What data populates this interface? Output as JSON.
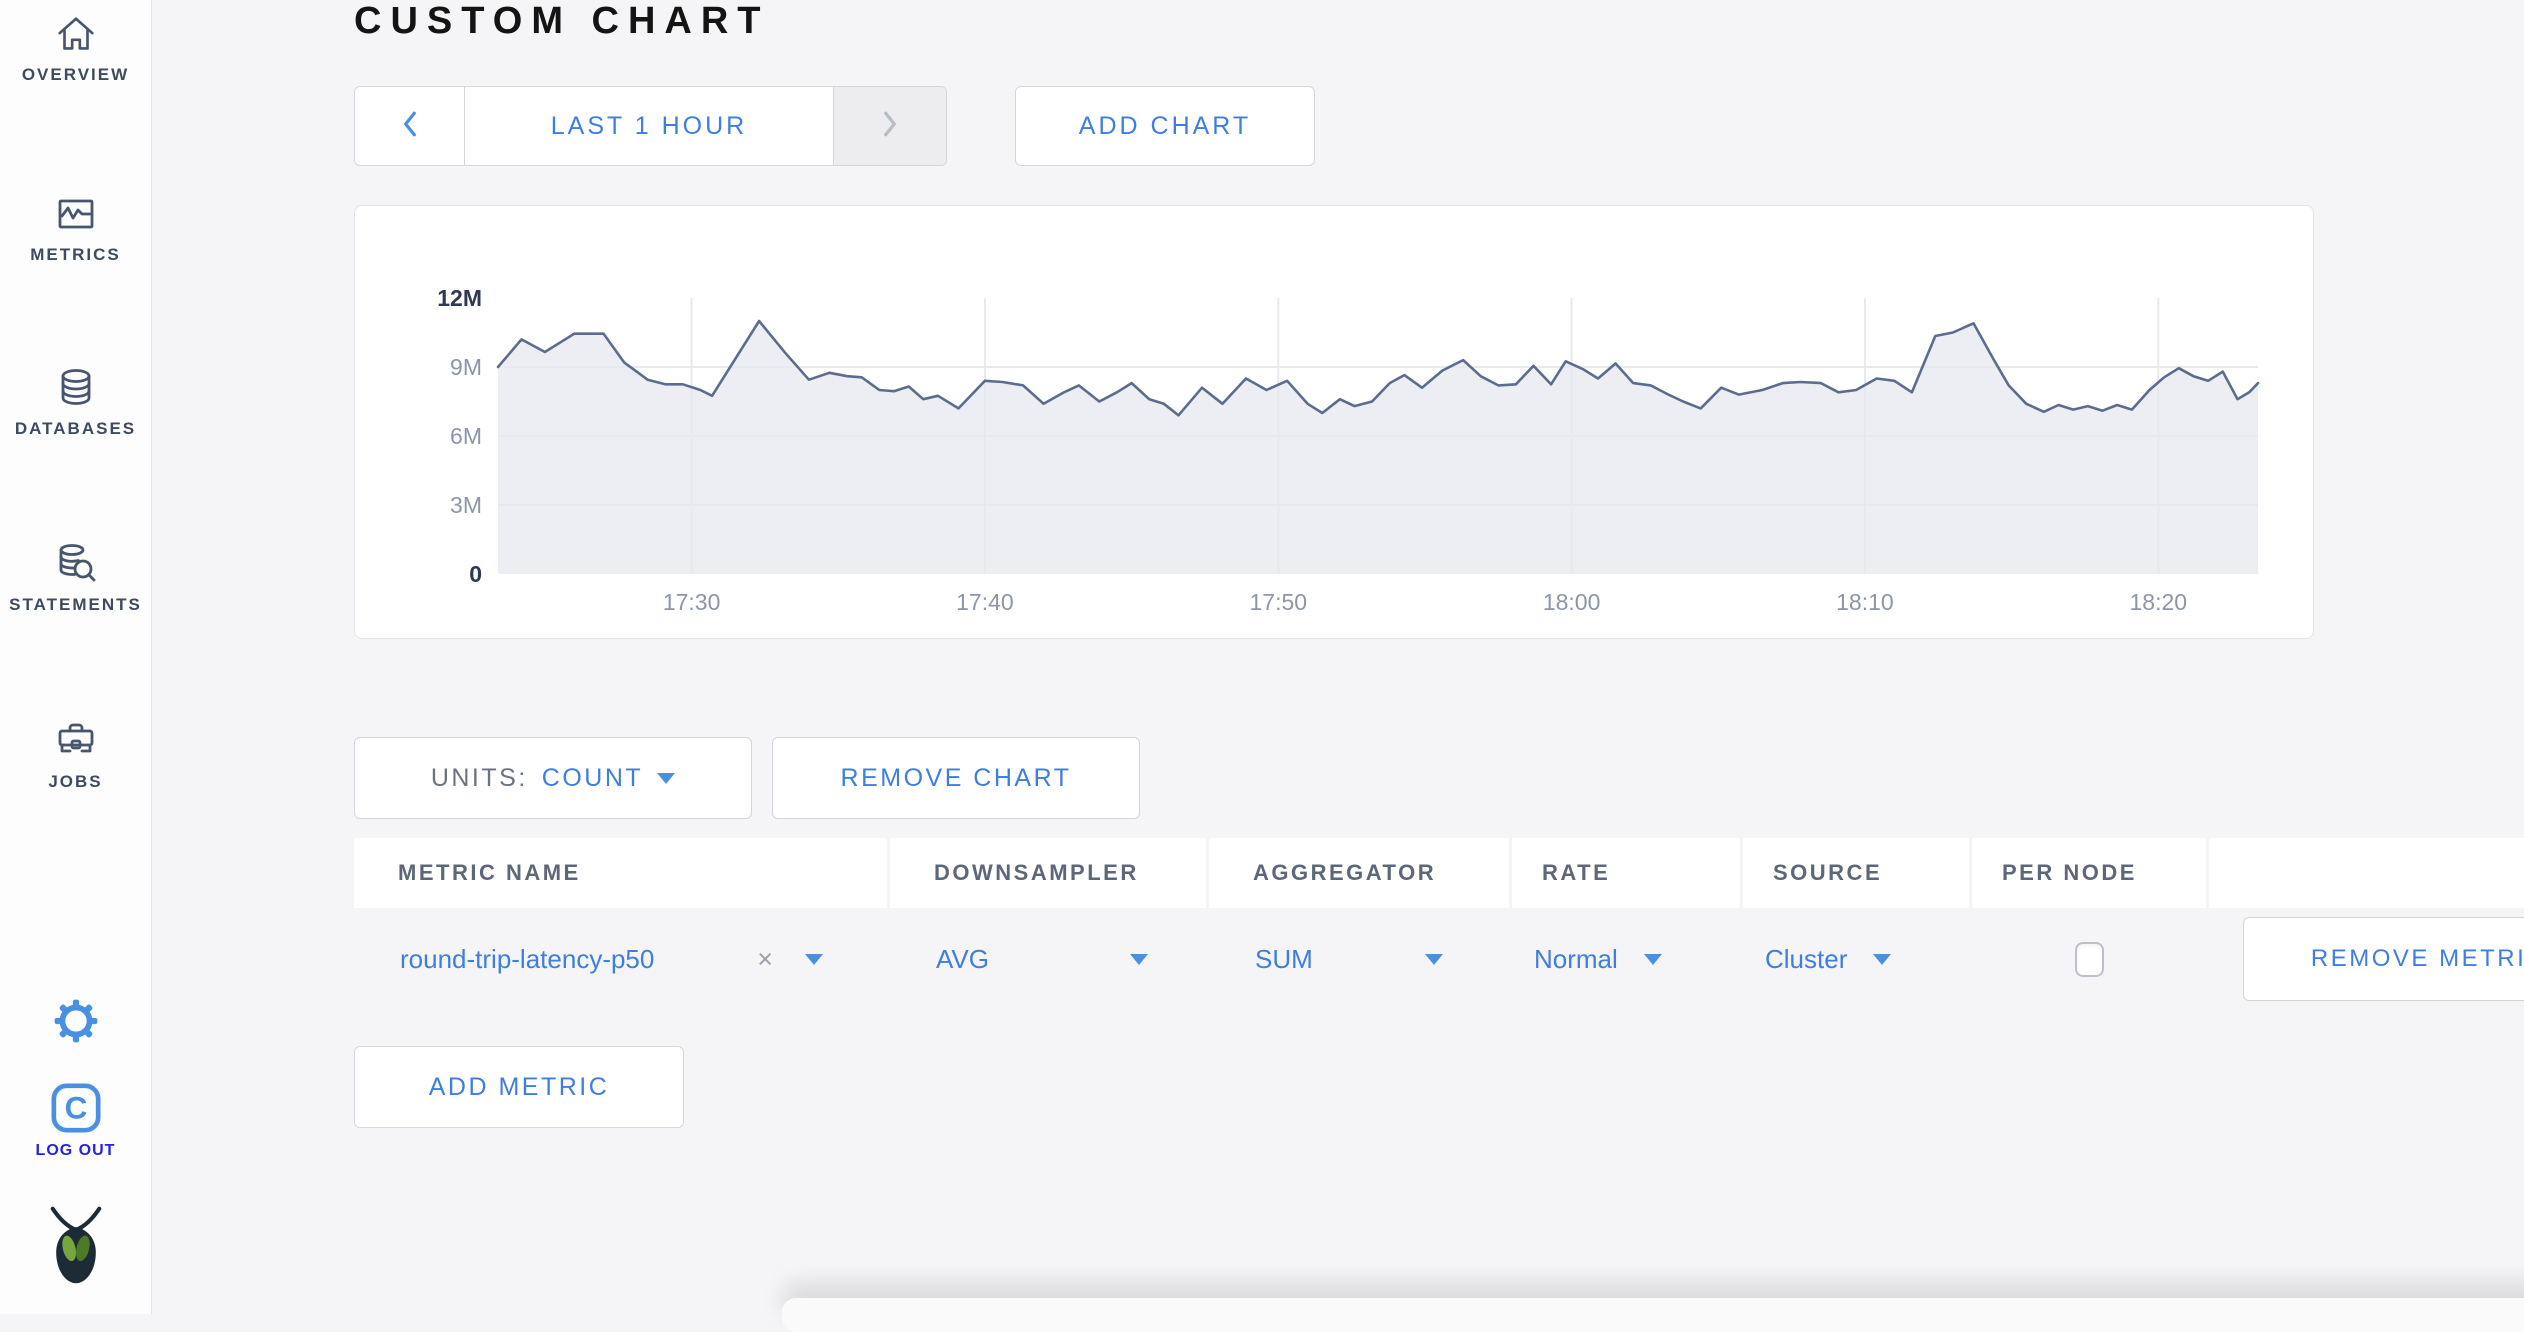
{
  "colors": {
    "accent_blue": "#3f7ee1",
    "logout_blue": "#2522e6",
    "icon_slate": "#47566e",
    "chart_line": "#5b6c8f",
    "chart_fill": "#eceef4",
    "chart_grid": "#e7e9ee",
    "axis_label": "#8d96a8",
    "axis_label_emph": "#2e3a52"
  },
  "sidebar": {
    "items": [
      {
        "id": "overview",
        "label": "OVERVIEW"
      },
      {
        "id": "metrics",
        "label": "METRICS"
      },
      {
        "id": "databases",
        "label": "DATABASES"
      },
      {
        "id": "statements",
        "label": "STATEMENTS"
      },
      {
        "id": "jobs",
        "label": "JOBS"
      }
    ],
    "logout_label": "LOG OUT"
  },
  "header": {
    "title": "CUSTOM CHART"
  },
  "toolbar": {
    "time_range_label": "LAST 1 HOUR",
    "add_chart_label": "ADD CHART"
  },
  "chart_controls": {
    "units_label": "UNITS:",
    "units_value": "COUNT",
    "remove_chart_label": "REMOVE CHART"
  },
  "metrics_table": {
    "headers": [
      "METRIC NAME",
      "DOWNSAMPLER",
      "AGGREGATOR",
      "RATE",
      "SOURCE",
      "PER NODE"
    ],
    "rows": [
      {
        "metric_name": "round-trip-latency-p50",
        "clear_glyph": "×",
        "downsampler": "AVG",
        "aggregator": "SUM",
        "rate": "Normal",
        "source": "Cluster",
        "per_node_checked": false,
        "remove_label": "REMOVE METRIC"
      }
    ],
    "add_metric_label": "ADD METRIC"
  },
  "chart_data": {
    "type": "area",
    "title": "",
    "xlabel": "",
    "ylabel": "count",
    "values_unit": "millions",
    "ylim_millions": [
      0,
      12
    ],
    "x_range_minutes": [
      0,
      60
    ],
    "grid": true,
    "y_ticks": [
      {
        "label": "0",
        "value": 0,
        "emph": true
      },
      {
        "label": "3M",
        "value": 3,
        "emph": false
      },
      {
        "label": "6M",
        "value": 6,
        "emph": false
      },
      {
        "label": "9M",
        "value": 9,
        "emph": false
      },
      {
        "label": "12M",
        "value": 12,
        "emph": true
      }
    ],
    "x_ticks": [
      {
        "label": "17:30",
        "t": 6.6
      },
      {
        "label": "17:40",
        "t": 16.6
      },
      {
        "label": "17:50",
        "t": 26.6
      },
      {
        "label": "18:00",
        "t": 36.6
      },
      {
        "label": "18:10",
        "t": 46.6
      },
      {
        "label": "18:20",
        "t": 56.6
      }
    ],
    "points": [
      [
        0,
        9.0
      ],
      [
        0.8,
        10.2
      ],
      [
        1.6,
        9.65
      ],
      [
        2.6,
        10.45
      ],
      [
        3.6,
        10.45
      ],
      [
        4.3,
        9.2
      ],
      [
        5.1,
        8.45
      ],
      [
        5.7,
        8.25
      ],
      [
        6.3,
        8.25
      ],
      [
        6.9,
        8.0
      ],
      [
        7.3,
        7.75
      ],
      [
        8.9,
        11.0
      ],
      [
        9.8,
        9.6
      ],
      [
        10.6,
        8.45
      ],
      [
        11.3,
        8.75
      ],
      [
        11.9,
        8.6
      ],
      [
        12.4,
        8.55
      ],
      [
        13.0,
        8.0
      ],
      [
        13.5,
        7.95
      ],
      [
        14.0,
        8.15
      ],
      [
        14.5,
        7.6
      ],
      [
        15.0,
        7.75
      ],
      [
        15.7,
        7.2
      ],
      [
        16.6,
        8.4
      ],
      [
        17.2,
        8.35
      ],
      [
        17.9,
        8.2
      ],
      [
        18.6,
        7.4
      ],
      [
        19.3,
        7.9
      ],
      [
        19.8,
        8.2
      ],
      [
        20.5,
        7.5
      ],
      [
        21.1,
        7.9
      ],
      [
        21.6,
        8.3
      ],
      [
        22.2,
        7.6
      ],
      [
        22.7,
        7.4
      ],
      [
        23.2,
        6.9
      ],
      [
        24.0,
        8.1
      ],
      [
        24.7,
        7.4
      ],
      [
        25.5,
        8.5
      ],
      [
        26.2,
        8.0
      ],
      [
        26.9,
        8.4
      ],
      [
        27.6,
        7.4
      ],
      [
        28.1,
        7.0
      ],
      [
        28.7,
        7.6
      ],
      [
        29.2,
        7.3
      ],
      [
        29.8,
        7.5
      ],
      [
        30.4,
        8.3
      ],
      [
        30.9,
        8.65
      ],
      [
        31.5,
        8.1
      ],
      [
        32.2,
        8.85
      ],
      [
        32.9,
        9.3
      ],
      [
        33.5,
        8.6
      ],
      [
        34.1,
        8.2
      ],
      [
        34.7,
        8.25
      ],
      [
        35.3,
        9.05
      ],
      [
        35.9,
        8.25
      ],
      [
        36.4,
        9.25
      ],
      [
        37.0,
        8.9
      ],
      [
        37.5,
        8.5
      ],
      [
        38.1,
        9.15
      ],
      [
        38.7,
        8.3
      ],
      [
        39.3,
        8.2
      ],
      [
        39.9,
        7.8
      ],
      [
        40.4,
        7.5
      ],
      [
        41.0,
        7.2
      ],
      [
        41.7,
        8.1
      ],
      [
        42.3,
        7.8
      ],
      [
        43.1,
        8.0
      ],
      [
        43.8,
        8.3
      ],
      [
        44.4,
        8.35
      ],
      [
        45.1,
        8.3
      ],
      [
        45.7,
        7.9
      ],
      [
        46.3,
        8.0
      ],
      [
        47.0,
        8.5
      ],
      [
        47.6,
        8.4
      ],
      [
        48.2,
        7.9
      ],
      [
        49.0,
        10.35
      ],
      [
        49.6,
        10.5
      ],
      [
        50.3,
        10.9
      ],
      [
        51.0,
        9.3
      ],
      [
        51.5,
        8.2
      ],
      [
        52.1,
        7.4
      ],
      [
        52.7,
        7.05
      ],
      [
        53.2,
        7.35
      ],
      [
        53.7,
        7.15
      ],
      [
        54.2,
        7.3
      ],
      [
        54.7,
        7.1
      ],
      [
        55.2,
        7.35
      ],
      [
        55.7,
        7.15
      ],
      [
        56.3,
        8.0
      ],
      [
        56.8,
        8.55
      ],
      [
        57.3,
        8.95
      ],
      [
        57.8,
        8.6
      ],
      [
        58.3,
        8.4
      ],
      [
        58.8,
        8.8
      ],
      [
        59.3,
        7.6
      ],
      [
        59.7,
        7.9
      ],
      [
        60.0,
        8.3
      ]
    ]
  }
}
